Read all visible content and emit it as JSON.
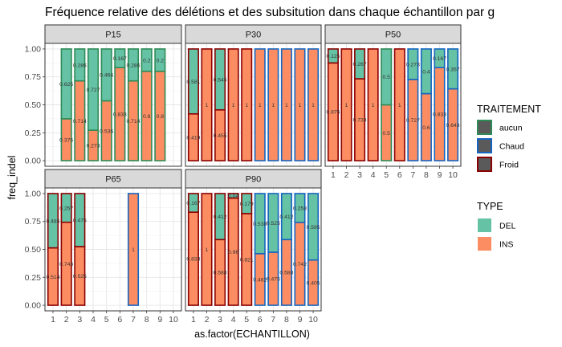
{
  "chart_data": {
    "type": "bar",
    "title": "Fréquence relative des délétions et des subsitution dans chaque échantillon par g",
    "xlabel": "as.factor(ECHANTILLON)",
    "ylabel": "freq_indel",
    "categories": [
      "1",
      "2",
      "3",
      "4",
      "5",
      "6",
      "7",
      "8",
      "9",
      "10"
    ],
    "ylim": [
      0,
      1
    ],
    "yticks": [
      "0.00",
      "0.25",
      "0.50",
      "0.75",
      "1.00"
    ],
    "grid": true,
    "legend_position": "right",
    "stacked": true,
    "legend": {
      "traitement": {
        "title": "TRAITEMENT",
        "entries": [
          {
            "name": "aucun",
            "color": "#2e8b57"
          },
          {
            "name": "Chaud",
            "color": "#1565c0"
          },
          {
            "name": "Froid",
            "color": "#8b0000"
          }
        ]
      },
      "type": {
        "title": "TYPE",
        "entries": [
          {
            "name": "DEL",
            "color": "#66c2a5"
          },
          {
            "name": "INS",
            "color": "#fc8d62"
          }
        ]
      }
    },
    "panels": [
      {
        "name": "P15",
        "bars": [
          {
            "x": 2,
            "traitement": "aucun",
            "ins": 0.375,
            "del": 0.625,
            "ins_label": "0.375",
            "del_label": "0.625"
          },
          {
            "x": 3,
            "traitement": "aucun",
            "ins": 0.714,
            "del": 0.286,
            "ins_label": "0.714",
            "del_label": "0.286"
          },
          {
            "x": 4,
            "traitement": "aucun",
            "ins": 0.273,
            "del": 0.727,
            "ins_label": "0.273",
            "del_label": "0.727"
          },
          {
            "x": 5,
            "traitement": "aucun",
            "ins": 0.536,
            "del": 0.464,
            "ins_label": "0.536",
            "del_label": "0.464"
          },
          {
            "x": 6,
            "traitement": "aucun",
            "ins": 0.833,
            "del": 0.167,
            "ins_label": "0.833",
            "del_label": "0.167"
          },
          {
            "x": 7,
            "traitement": "aucun",
            "ins": 0.714,
            "del": 0.286,
            "ins_label": "0.714",
            "del_label": "0.286"
          },
          {
            "x": 8,
            "traitement": "aucun",
            "ins": 0.8,
            "del": 0.2,
            "ins_label": "0.8",
            "del_label": "0.2"
          },
          {
            "x": 9,
            "traitement": "aucun",
            "ins": 0.8,
            "del": 0.2,
            "ins_label": "0.8",
            "del_label": "0.2"
          }
        ]
      },
      {
        "name": "P30",
        "bars": [
          {
            "x": 1,
            "traitement": "Froid",
            "ins": 0.419,
            "del": 0.581,
            "ins_label": "0.419",
            "del_label": "0.581"
          },
          {
            "x": 2,
            "traitement": "Froid",
            "ins": 1,
            "del": 0,
            "ins_label": "1",
            "del_label": ""
          },
          {
            "x": 3,
            "traitement": "Froid",
            "ins": 0.455,
            "del": 0.545,
            "ins_label": "0.455",
            "del_label": "0.545"
          },
          {
            "x": 4,
            "traitement": "Froid",
            "ins": 1,
            "del": 0,
            "ins_label": "1",
            "del_label": ""
          },
          {
            "x": 5,
            "traitement": "Froid",
            "ins": 1,
            "del": 0,
            "ins_label": "1",
            "del_label": ""
          },
          {
            "x": 6,
            "traitement": "Chaud",
            "ins": 1,
            "del": 0,
            "ins_label": "1",
            "del_label": ""
          },
          {
            "x": 7,
            "traitement": "Chaud",
            "ins": 1,
            "del": 0,
            "ins_label": "1",
            "del_label": ""
          },
          {
            "x": 8,
            "traitement": "Chaud",
            "ins": 1,
            "del": 0,
            "ins_label": "1",
            "del_label": ""
          },
          {
            "x": 9,
            "traitement": "Chaud",
            "ins": 1,
            "del": 0,
            "ins_label": "1",
            "del_label": ""
          },
          {
            "x": 10,
            "traitement": "Chaud",
            "ins": 1,
            "del": 0,
            "ins_label": "1",
            "del_label": ""
          }
        ]
      },
      {
        "name": "P50",
        "bars": [
          {
            "x": 1,
            "traitement": "Froid",
            "ins": 0.875,
            "del": 0.125,
            "ins_label": "0.875",
            "del_label": "0.125"
          },
          {
            "x": 2,
            "traitement": "Froid",
            "ins": 1,
            "del": 0,
            "ins_label": "1",
            "del_label": ""
          },
          {
            "x": 3,
            "traitement": "Froid",
            "ins": 0.733,
            "del": 0.267,
            "ins_label": "0.733",
            "del_label": "0.267"
          },
          {
            "x": 4,
            "traitement": "Froid",
            "ins": 1,
            "del": 0,
            "ins_label": "1",
            "del_label": ""
          },
          {
            "x": 5,
            "traitement": "aucun",
            "ins": 0.5,
            "del": 0.5,
            "ins_label": "0.5",
            "del_label": "0.5"
          },
          {
            "x": 6,
            "traitement": "Froid",
            "ins": 1,
            "del": 0,
            "ins_label": "1",
            "del_label": ""
          },
          {
            "x": 7,
            "traitement": "Chaud",
            "ins": 0.727,
            "del": 0.273,
            "ins_label": "0.727",
            "del_label": "0.273"
          },
          {
            "x": 8,
            "traitement": "Chaud",
            "ins": 0.6,
            "del": 0.4,
            "ins_label": "0.6",
            "del_label": "0.4"
          },
          {
            "x": 9,
            "traitement": "Chaud",
            "ins": 0.833,
            "del": 0.167,
            "ins_label": "0.833",
            "del_label": "0.167"
          },
          {
            "x": 10,
            "traitement": "Chaud",
            "ins": 0.643,
            "del": 0.357,
            "ins_label": "0.643",
            "del_label": "0.357"
          }
        ]
      },
      {
        "name": "P65",
        "bars": [
          {
            "x": 1,
            "traitement": "Froid",
            "ins": 0.514,
            "del": 0.486,
            "ins_label": "0.514",
            "del_label": "0.486"
          },
          {
            "x": 2,
            "traitement": "Froid",
            "ins": 0.743,
            "del": 0.257,
            "ins_label": "0.743",
            "del_label": "0.257"
          },
          {
            "x": 3,
            "traitement": "Froid",
            "ins": 0.525,
            "del": 0.475,
            "ins_label": "0.525",
            "del_label": "0.475"
          },
          {
            "x": 7,
            "traitement": "Chaud",
            "ins": 1,
            "del": 0,
            "ins_label": "1",
            "del_label": ""
          }
        ]
      },
      {
        "name": "P90",
        "bars": [
          {
            "x": 1,
            "traitement": "Froid",
            "ins": 0.833,
            "del": 0.167,
            "ins_label": "0.833",
            "del_label": "0.167"
          },
          {
            "x": 2,
            "traitement": "Froid",
            "ins": 1,
            "del": 0,
            "ins_label": "1",
            "del_label": ""
          },
          {
            "x": 3,
            "traitement": "Froid",
            "ins": 0.588,
            "del": 0.412,
            "ins_label": "0.588",
            "del_label": "0.412"
          },
          {
            "x": 4,
            "traitement": "Froid",
            "ins": 0.96,
            "del": 0.04,
            "ins_label": "0.96",
            "del_label": "0.04"
          },
          {
            "x": 5,
            "traitement": "Froid",
            "ins": 0.821,
            "del": 0.179,
            "ins_label": "0.821",
            "del_label": "0.179"
          },
          {
            "x": 6,
            "traitement": "Chaud",
            "ins": 0.462,
            "del": 0.538,
            "ins_label": "0.462",
            "del_label": "0.538"
          },
          {
            "x": 7,
            "traitement": "Chaud",
            "ins": 0.475,
            "del": 0.525,
            "ins_label": "0.475",
            "del_label": "0.525"
          },
          {
            "x": 8,
            "traitement": "Chaud",
            "ins": 0.588,
            "del": 0.412,
            "ins_label": "0.588",
            "del_label": "0.412"
          },
          {
            "x": 9,
            "traitement": "Chaud",
            "ins": 0.742,
            "del": 0.258,
            "ins_label": "0.742",
            "del_label": "0.258"
          },
          {
            "x": 10,
            "traitement": "Chaud",
            "ins": 0.405,
            "del": 0.595,
            "ins_label": "0.405",
            "del_label": "0.595"
          }
        ]
      }
    ]
  }
}
